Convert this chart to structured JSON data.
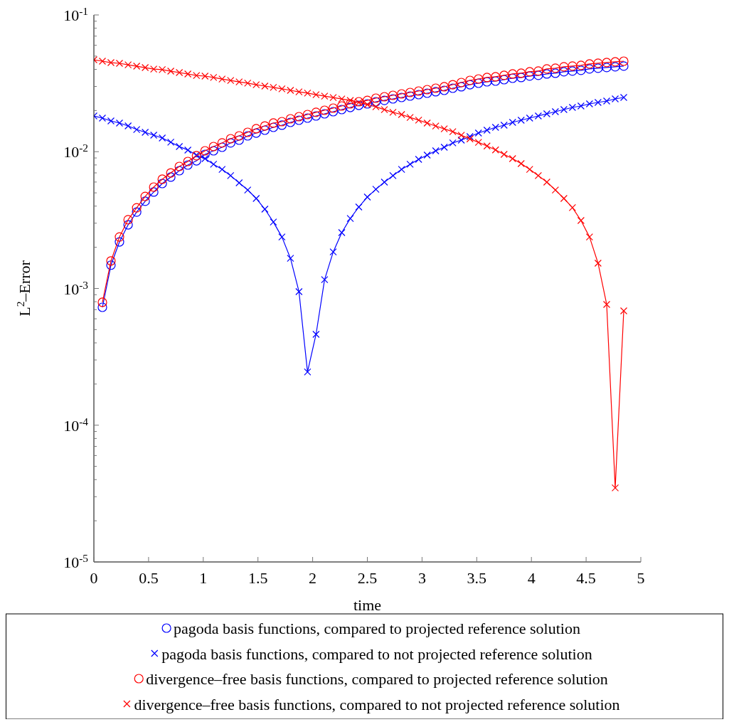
{
  "chart_data": {
    "type": "line",
    "xlabel": "time",
    "ylabel": "L$^{2}$–Error",
    "log": "y",
    "xlim": [
      0,
      5
    ],
    "xticks": [
      0,
      0.5,
      1,
      1.5,
      2,
      2.5,
      3,
      3.5,
      4,
      4.5,
      5
    ],
    "ylim": [
      1e-05,
      0.1
    ],
    "yticks": [
      {
        "value": 1e-05,
        "label": "10$^{-5}$"
      },
      {
        "value": 2e-05,
        "label": null
      },
      {
        "value": 3e-05,
        "label": null
      },
      {
        "value": 4e-05,
        "label": null
      },
      {
        "value": 5e-05,
        "label": null
      },
      {
        "value": 6e-05,
        "label": null
      },
      {
        "value": 7e-05,
        "label": null
      },
      {
        "value": 8e-05,
        "label": null
      },
      {
        "value": 9e-05,
        "label": null
      },
      {
        "value": 0.0001,
        "label": "10$^{-4}$"
      },
      {
        "value": 0.0002,
        "label": null
      },
      {
        "value": 0.0003,
        "label": null
      },
      {
        "value": 0.0004,
        "label": null
      },
      {
        "value": 0.0005,
        "label": null
      },
      {
        "value": 0.0006,
        "label": null
      },
      {
        "value": 0.0007,
        "label": null
      },
      {
        "value": 0.0008,
        "label": null
      },
      {
        "value": 0.0009,
        "label": null
      },
      {
        "value": 0.001,
        "label": "10$^{-3}$"
      },
      {
        "value": 0.002,
        "label": null
      },
      {
        "value": 0.003,
        "label": null
      },
      {
        "value": 0.004,
        "label": null
      },
      {
        "value": 0.005,
        "label": null
      },
      {
        "value": 0.006,
        "label": null
      },
      {
        "value": 0.007,
        "label": null
      },
      {
        "value": 0.008,
        "label": null
      },
      {
        "value": 0.009,
        "label": null
      },
      {
        "value": 0.01,
        "label": "10$^{-2}$"
      },
      {
        "value": 0.02,
        "label": null
      },
      {
        "value": 0.03,
        "label": null
      },
      {
        "value": 0.04,
        "label": null
      },
      {
        "value": 0.05,
        "label": null
      },
      {
        "value": 0.06,
        "label": null
      },
      {
        "value": 0.07,
        "label": null
      },
      {
        "value": 0.08,
        "label": null
      },
      {
        "value": 0.09,
        "label": null
      },
      {
        "value": 0.1,
        "label": "10$^{-1}$"
      }
    ],
    "legend": "bottom",
    "x": [
      0,
      0.078,
      0.156,
      0.234,
      0.313,
      0.391,
      0.469,
      0.547,
      0.625,
      0.703,
      0.781,
      0.859,
      0.938,
      1.016,
      1.094,
      1.172,
      1.25,
      1.328,
      1.406,
      1.484,
      1.563,
      1.641,
      1.719,
      1.797,
      1.875,
      1.953,
      2.031,
      2.109,
      2.188,
      2.266,
      2.344,
      2.422,
      2.5,
      2.578,
      2.656,
      2.734,
      2.813,
      2.891,
      2.969,
      3.047,
      3.125,
      3.203,
      3.281,
      3.359,
      3.438,
      3.516,
      3.594,
      3.672,
      3.75,
      3.828,
      3.906,
      3.984,
      4.063,
      4.141,
      4.219,
      4.297,
      4.375,
      4.453,
      4.531,
      4.609,
      4.688,
      4.766,
      4.844
    ],
    "series": [
      {
        "name": "pagoda basis functions, compared to projected reference solution",
        "color": "#0000ff",
        "marker": "circle",
        "values": [
          null,
          0.000728,
          0.00148,
          0.00219,
          0.00292,
          0.00362,
          0.00434,
          0.00507,
          0.00585,
          0.00652,
          0.00726,
          0.00799,
          0.00858,
          0.00956,
          0.01015,
          0.01078,
          0.01159,
          0.01215,
          0.01305,
          0.01369,
          0.01437,
          0.01507,
          0.01563,
          0.01639,
          0.01699,
          0.01761,
          0.01825,
          0.01892,
          0.01961,
          0.02033,
          0.02107,
          0.02184,
          0.02238,
          0.02319,
          0.02374,
          0.02433,
          0.02492,
          0.02553,
          0.02615,
          0.02678,
          0.02744,
          0.0281,
          0.02913,
          0.02984,
          0.03091,
          0.03167,
          0.03244,
          0.03283,
          0.03363,
          0.03445,
          0.03487,
          0.03572,
          0.03615,
          0.03702,
          0.03747,
          0.03838,
          0.03885,
          0.03932,
          0.04027,
          0.04076,
          0.04125,
          0.04175,
          0.04225
        ]
      },
      {
        "name": "pagoda basis functions, compared to not projected reference solution",
        "color": "#0000ff",
        "marker": "cross",
        "values": [
          0.01825,
          0.01761,
          0.01679,
          0.0162,
          0.01543,
          0.01453,
          0.01386,
          0.01321,
          0.01259,
          0.01173,
          0.01091,
          0.01027,
          0.00945,
          0.0089,
          0.00809,
          0.00743,
          0.00668,
          0.00592,
          0.00525,
          0.00455,
          0.0038,
          0.00306,
          0.00238,
          0.00166,
          0.000948,
          0.000245,
          0.000462,
          0.00116,
          0.00185,
          0.00256,
          0.00325,
          0.00394,
          0.00466,
          0.00531,
          0.00599,
          0.00668,
          0.00743,
          0.00809,
          0.00879,
          0.00945,
          0.01015,
          0.01078,
          0.01159,
          0.01215,
          0.0129,
          0.01369,
          0.01437,
          0.01507,
          0.01563,
          0.01639,
          0.01699,
          0.01761,
          0.01825,
          0.01892,
          0.01961,
          0.02033,
          0.02107,
          0.02159,
          0.02238,
          0.02292,
          0.02347,
          0.02433,
          0.02492
        ]
      },
      {
        "name": "divergence–free basis functions, compared to projected reference solution",
        "color": "#ff0000",
        "marker": "circle",
        "values": [
          null,
          0.000792,
          0.00159,
          0.00238,
          0.00318,
          0.00389,
          0.00471,
          0.00551,
          0.00629,
          0.007,
          0.0078,
          0.00848,
          0.00934,
          0.01015,
          0.01091,
          0.01159,
          0.01244,
          0.01305,
          0.01386,
          0.01472,
          0.01543,
          0.0162,
          0.01659,
          0.0174,
          0.01804,
          0.0187,
          0.0194,
          0.02009,
          0.02083,
          0.02159,
          0.02238,
          0.02319,
          0.02374,
          0.02462,
          0.02522,
          0.02584,
          0.02646,
          0.0271,
          0.02776,
          0.02843,
          0.02913,
          0.02984,
          0.03091,
          0.03205,
          0.03322,
          0.03403,
          0.03487,
          0.03529,
          0.03615,
          0.03702,
          0.03747,
          0.03838,
          0.03885,
          0.04027,
          0.04076,
          0.04175,
          0.04225,
          0.04275,
          0.04379,
          0.04432,
          0.04485,
          0.04539,
          0.04592
        ]
      },
      {
        "name": "divergence–free basis functions, compared to not projected reference solution",
        "color": "#ff0000",
        "marker": "cross",
        "values": [
          0.047,
          0.0459,
          0.0448,
          0.0443,
          0.0432,
          0.0422,
          0.0412,
          0.0402,
          0.0398,
          0.0388,
          0.0379,
          0.037,
          0.0361,
          0.0357,
          0.0349,
          0.034,
          0.0332,
          0.0324,
          0.0317,
          0.0309,
          0.0302,
          0.0295,
          0.0288,
          0.0281,
          0.0274,
          0.0268,
          0.0261,
          0.0255,
          0.0249,
          0.0243,
          0.0237,
          0.0229,
          0.0221,
          0.0213,
          0.0203,
          0.0194,
          0.0187,
          0.0178,
          0.017,
          0.0162,
          0.0154,
          0.0147,
          0.014,
          0.0132,
          0.0124,
          0.0117,
          0.011,
          0.0103,
          0.00956,
          0.0089,
          0.00818,
          0.00743,
          0.00668,
          0.00599,
          0.00525,
          0.00455,
          0.0039,
          0.00314,
          0.00238,
          0.00153,
          0.000764,
          3.48e-05,
          0.000686
        ]
      }
    ]
  }
}
